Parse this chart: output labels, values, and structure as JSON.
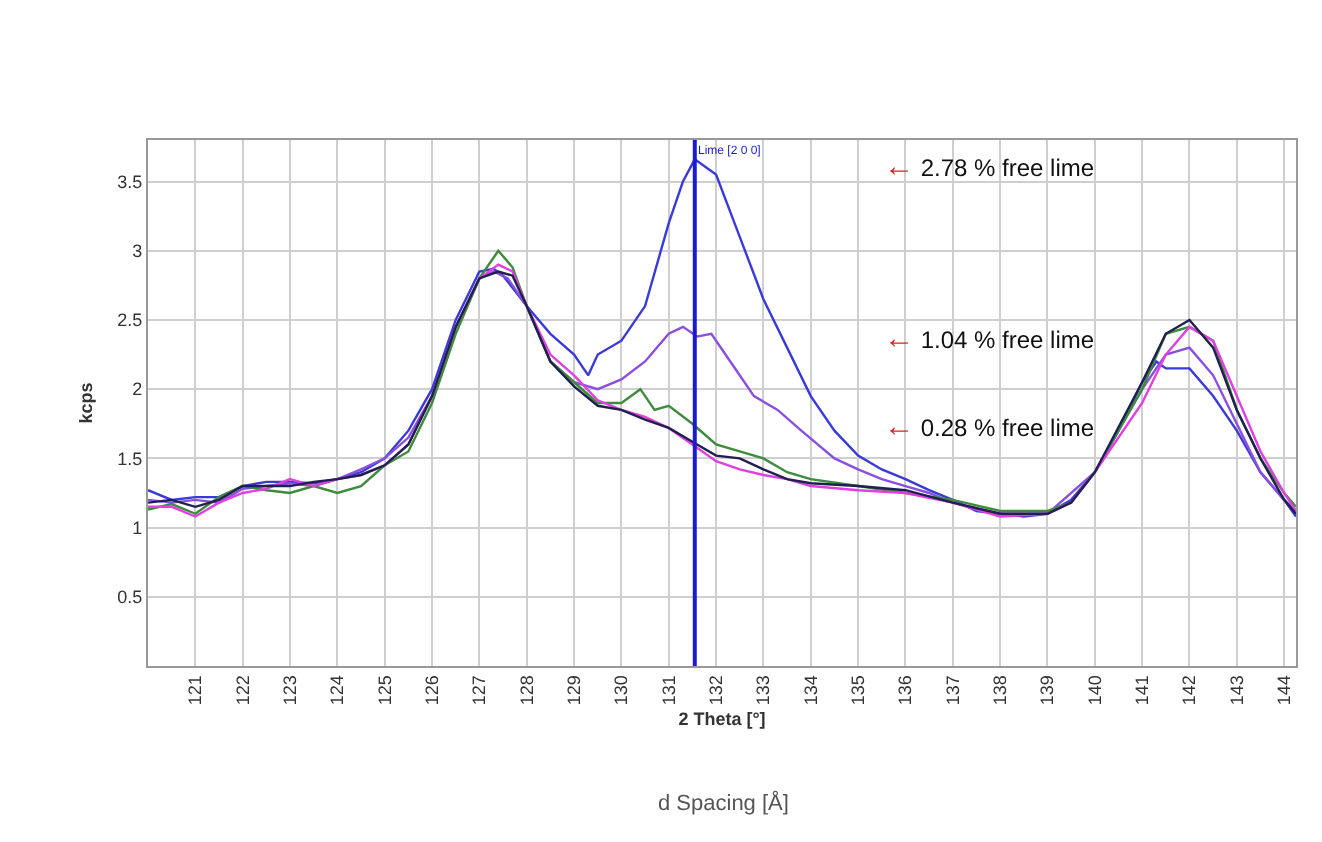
{
  "chart_data": {
    "type": "line",
    "xlabel": "2 Theta [°]",
    "ylabel": "kcps",
    "xlim": [
      120,
      144.25
    ],
    "ylim": [
      0,
      3.8
    ],
    "xticks": [
      121,
      122,
      123,
      124,
      125,
      126,
      127,
      128,
      129,
      130,
      131,
      132,
      133,
      134,
      135,
      136,
      137,
      138,
      139,
      140,
      141,
      142,
      143,
      144
    ],
    "yticks": [
      0.5,
      1,
      1.5,
      2,
      2.5,
      3,
      3.5
    ],
    "grid": true,
    "legend": false,
    "marker": "none",
    "line_style": "solid",
    "ref_lines": [
      {
        "axis": "x",
        "value": 131.55,
        "label": "Lime [2 0 0]",
        "color": "#1a1ad0"
      }
    ],
    "annotations": [
      "← 2.78 % free lime",
      "← 1.04 % free lime",
      "← 0.28 % free lime",
      "d Spacing [Å]"
    ],
    "series": [
      {
        "color": "#3a3ad8",
        "x": [
          120,
          120.5,
          121,
          121.5,
          122,
          122.5,
          123,
          123.5,
          124,
          124.5,
          125,
          125.5,
          126,
          126.5,
          127,
          127.3,
          127.5,
          128,
          128.5,
          129,
          129.3,
          129.5,
          130,
          130.5,
          131,
          131.3,
          131.55,
          132,
          132.5,
          133,
          133.5,
          134,
          134.5,
          135,
          135.5,
          136,
          136.5,
          137,
          137.5,
          138,
          138.5,
          139,
          139.5,
          140,
          140.5,
          141,
          141.3,
          141.5,
          142,
          142.5,
          143,
          143.5,
          144,
          144.25
        ],
        "values": [
          1.27,
          1.2,
          1.22,
          1.22,
          1.3,
          1.33,
          1.33,
          1.32,
          1.35,
          1.4,
          1.5,
          1.7,
          2.0,
          2.5,
          2.85,
          2.87,
          2.82,
          2.6,
          2.4,
          2.25,
          2.1,
          2.25,
          2.35,
          2.6,
          3.2,
          3.5,
          3.66,
          3.55,
          3.1,
          2.65,
          2.3,
          1.95,
          1.7,
          1.52,
          1.42,
          1.35,
          1.27,
          1.2,
          1.12,
          1.1,
          1.08,
          1.1,
          1.2,
          1.4,
          1.7,
          2.05,
          2.2,
          2.15,
          2.15,
          1.95,
          1.7,
          1.4,
          1.2,
          1.08
        ]
      },
      {
        "color": "#8a4fe0",
        "x": [
          120,
          120.5,
          121,
          121.5,
          122,
          122.5,
          123,
          123.5,
          124,
          124.5,
          125,
          125.5,
          126,
          126.5,
          127,
          127.3,
          127.6,
          128,
          128.5,
          129,
          129.5,
          130,
          130.5,
          131,
          131.3,
          131.6,
          131.9,
          132.3,
          132.8,
          133.3,
          133.8,
          134.5,
          135,
          135.5,
          136,
          136.5,
          137,
          138,
          139,
          140,
          141,
          141.5,
          142,
          142.5,
          143,
          143.5,
          144,
          144.25
        ],
        "values": [
          1.2,
          1.18,
          1.2,
          1.18,
          1.28,
          1.3,
          1.32,
          1.3,
          1.35,
          1.42,
          1.5,
          1.65,
          1.95,
          2.45,
          2.8,
          2.85,
          2.8,
          2.6,
          2.2,
          2.05,
          2.0,
          2.07,
          2.2,
          2.4,
          2.45,
          2.38,
          2.4,
          2.2,
          1.95,
          1.85,
          1.7,
          1.5,
          1.42,
          1.35,
          1.3,
          1.25,
          1.18,
          1.1,
          1.1,
          1.4,
          2.0,
          2.25,
          2.3,
          2.1,
          1.75,
          1.4,
          1.2,
          1.12
        ]
      },
      {
        "color": "#3c8c3c",
        "x": [
          120,
          120.5,
          121,
          121.5,
          122,
          122.5,
          123,
          123.5,
          124,
          124.5,
          125,
          125.5,
          126,
          126.5,
          127,
          127.4,
          127.7,
          128,
          128.5,
          129,
          129.5,
          130,
          130.4,
          130.7,
          131,
          131.5,
          132,
          132.5,
          133,
          133.5,
          134,
          135,
          136,
          137,
          138,
          139,
          139.5,
          140,
          141,
          141.5,
          142,
          142.5,
          143,
          143.5,
          144,
          144.25
        ],
        "values": [
          1.13,
          1.17,
          1.1,
          1.22,
          1.3,
          1.27,
          1.25,
          1.3,
          1.25,
          1.3,
          1.45,
          1.55,
          1.9,
          2.4,
          2.8,
          3.0,
          2.88,
          2.6,
          2.2,
          2.05,
          1.9,
          1.9,
          2.0,
          1.85,
          1.88,
          1.75,
          1.6,
          1.55,
          1.5,
          1.4,
          1.35,
          1.3,
          1.25,
          1.2,
          1.12,
          1.12,
          1.18,
          1.4,
          2.0,
          2.4,
          2.45,
          2.35,
          1.85,
          1.5,
          1.25,
          1.15
        ]
      },
      {
        "color": "#e040e0",
        "x": [
          120,
          120.5,
          121,
          121.5,
          122,
          122.5,
          123,
          123.5,
          124,
          124.5,
          125,
          125.5,
          126,
          126.5,
          127,
          127.4,
          127.7,
          128,
          128.5,
          129,
          129.5,
          130,
          130.5,
          131,
          131.5,
          132,
          132.5,
          133,
          133.5,
          134,
          135,
          136,
          137,
          138,
          139,
          139.5,
          140,
          141,
          141.5,
          142,
          142.5,
          143,
          143.5,
          144,
          144.25
        ],
        "values": [
          1.15,
          1.15,
          1.08,
          1.18,
          1.25,
          1.28,
          1.35,
          1.3,
          1.35,
          1.38,
          1.45,
          1.6,
          1.95,
          2.45,
          2.8,
          2.9,
          2.85,
          2.6,
          2.25,
          2.1,
          1.92,
          1.85,
          1.8,
          1.72,
          1.6,
          1.48,
          1.42,
          1.38,
          1.35,
          1.3,
          1.27,
          1.25,
          1.18,
          1.08,
          1.1,
          1.18,
          1.4,
          1.9,
          2.25,
          2.45,
          2.35,
          1.95,
          1.55,
          1.25,
          1.12
        ]
      },
      {
        "color": "#202050",
        "x": [
          120,
          120.5,
          121,
          121.5,
          122,
          122.5,
          123,
          123.5,
          124,
          124.5,
          125,
          125.5,
          126,
          126.5,
          127,
          127.4,
          127.7,
          128,
          128.5,
          129,
          129.5,
          130,
          130.5,
          131,
          131.5,
          132,
          132.5,
          133,
          133.5,
          134,
          135,
          136,
          137,
          138,
          139,
          139.5,
          140,
          141,
          141.5,
          142,
          142.5,
          143,
          143.5,
          144,
          144.25
        ],
        "values": [
          1.18,
          1.2,
          1.15,
          1.2,
          1.3,
          1.3,
          1.3,
          1.33,
          1.35,
          1.38,
          1.45,
          1.6,
          1.95,
          2.45,
          2.8,
          2.85,
          2.82,
          2.6,
          2.2,
          2.02,
          1.88,
          1.85,
          1.78,
          1.72,
          1.62,
          1.52,
          1.5,
          1.42,
          1.35,
          1.32,
          1.3,
          1.27,
          1.18,
          1.1,
          1.1,
          1.18,
          1.4,
          2.05,
          2.4,
          2.5,
          2.3,
          1.85,
          1.5,
          1.2,
          1.1
        ]
      }
    ]
  }
}
